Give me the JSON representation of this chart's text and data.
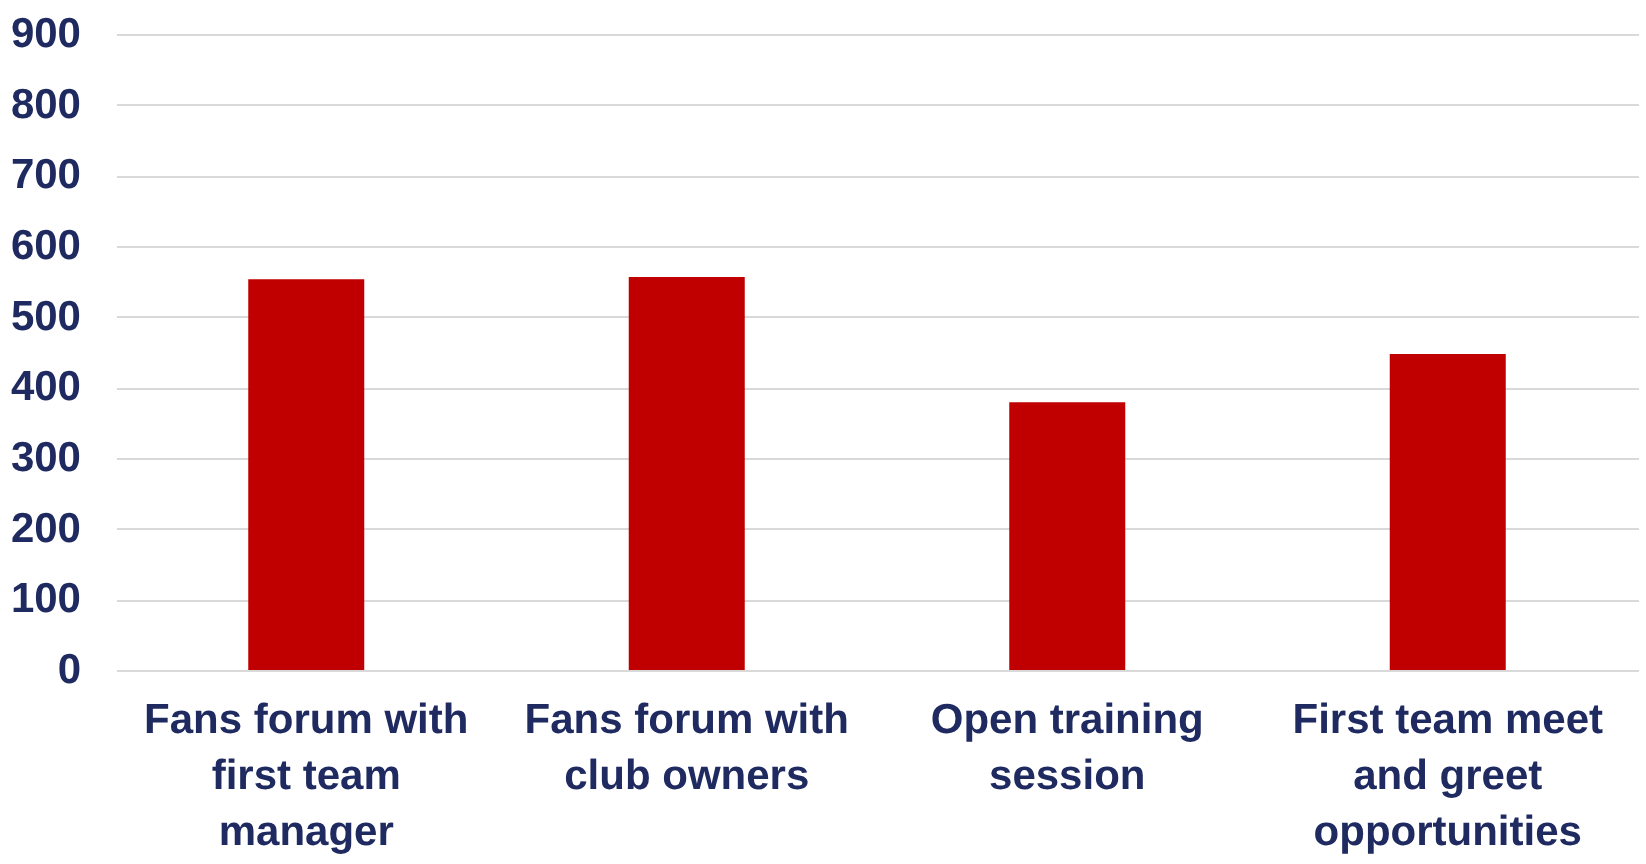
{
  "chart_data": {
    "type": "bar",
    "categories": [
      "Fans forum with first team manager",
      "Fans forum with club owners",
      "Open training session",
      "First team meet and greet opportunities"
    ],
    "values": [
      553,
      556,
      379,
      447
    ],
    "color": "#c00000",
    "ylim": [
      0,
      900
    ],
    "yticks": [
      0,
      100,
      200,
      300,
      400,
      500,
      600,
      700,
      800,
      900
    ],
    "grid": "y"
  }
}
